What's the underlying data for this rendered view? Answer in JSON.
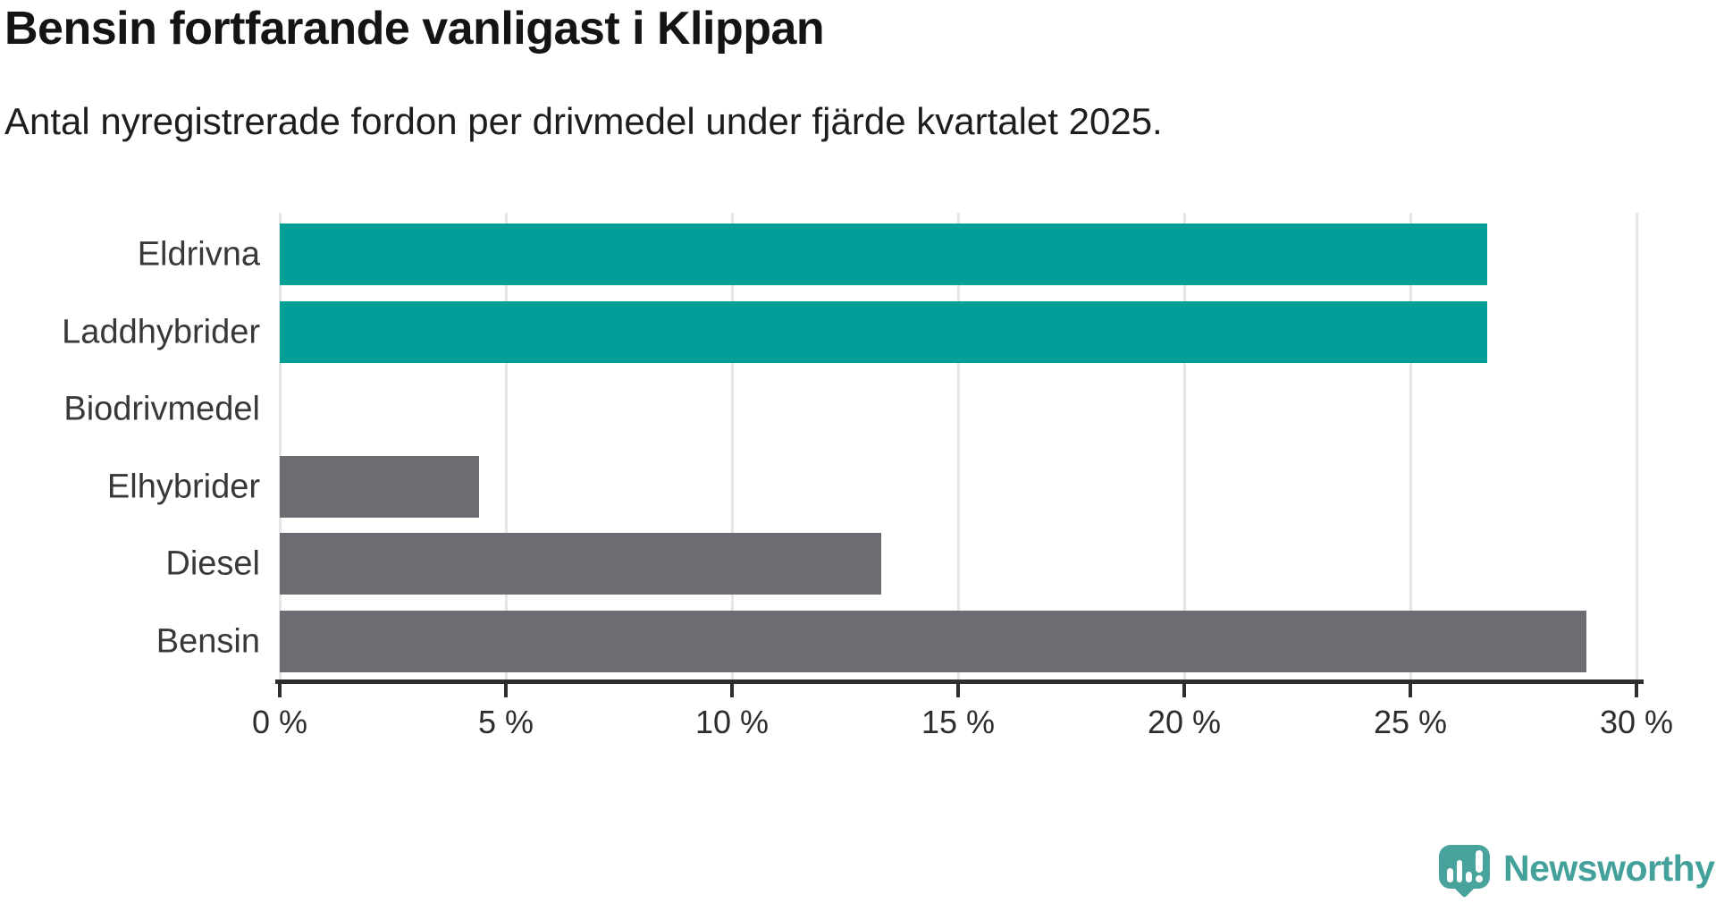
{
  "header": {
    "title": "Bensin fortfarande vanligast i Klippan",
    "subtitle": "Antal nyregistrerade fordon per drivmedel under fjärde kvartalet 2025."
  },
  "chart_data": {
    "type": "bar",
    "orientation": "horizontal",
    "title": "Bensin fortfarande vanligast i Klippan",
    "subtitle": "Antal nyregistrerade fordon per drivmedel under fjärde kvartalet 2025.",
    "categories": [
      "Eldrivna",
      "Laddhybrider",
      "Biodrivmedel",
      "Elhybrider",
      "Diesel",
      "Bensin"
    ],
    "values": [
      26.7,
      26.7,
      0,
      4.4,
      13.3,
      28.9
    ],
    "unit": "%",
    "bar_colors": [
      "#00a098",
      "#00a098",
      "#6c6c72",
      "#6c6c72",
      "#6c6c72",
      "#6c6c72"
    ],
    "highlight_color": "#00a098",
    "default_color": "#6c6c72",
    "xlabel": "",
    "ylabel": "",
    "xlim": [
      0,
      30
    ],
    "x_ticks": [
      {
        "value": 0,
        "label": "0 %"
      },
      {
        "value": 5,
        "label": "5 %"
      },
      {
        "value": 10,
        "label": "10 %"
      },
      {
        "value": 15,
        "label": "15 %"
      },
      {
        "value": 20,
        "label": "20 %"
      },
      {
        "value": 25,
        "label": "25 %"
      },
      {
        "value": 30,
        "label": "30 %"
      }
    ],
    "grid": "vertical-only",
    "legend": "none"
  },
  "branding": {
    "logo_text": "Newsworthy",
    "logo_color": "#44a09a",
    "logo_icon": "speech-bubble-bar-chart-icon"
  }
}
